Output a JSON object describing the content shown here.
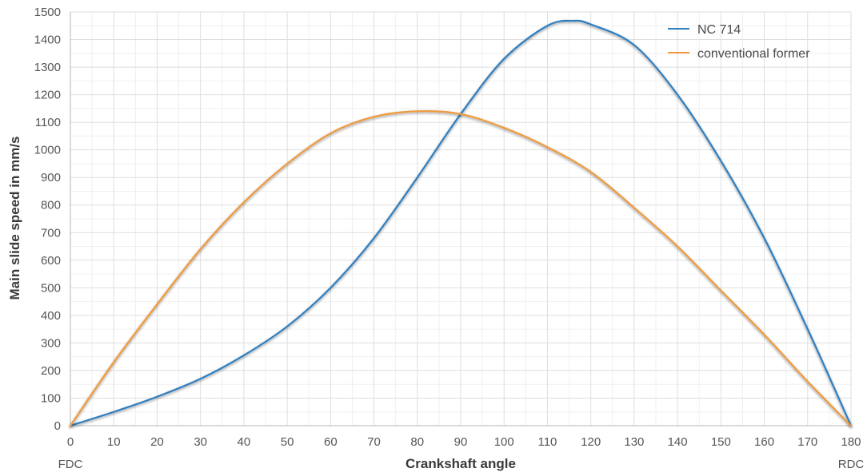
{
  "chart_data": {
    "type": "line",
    "title": "",
    "xlabel": "Crankshaft angle",
    "ylabel": "Main slide speed in mm/s",
    "xlim": [
      0,
      180
    ],
    "ylim": [
      0,
      1500
    ],
    "x_ticks": [
      0,
      10,
      20,
      30,
      40,
      50,
      60,
      70,
      80,
      90,
      100,
      110,
      120,
      130,
      140,
      150,
      160,
      170,
      180
    ],
    "y_ticks": [
      0,
      100,
      200,
      300,
      400,
      500,
      600,
      700,
      800,
      900,
      1000,
      1100,
      1200,
      1300,
      1400,
      1500
    ],
    "x_edge_labels": {
      "left": "FDC",
      "right": "RDC"
    },
    "grid": true,
    "legend_position": "top-right",
    "series": [
      {
        "name": "NC 714",
        "color": "#2f7fc1",
        "x": [
          0,
          10,
          20,
          30,
          40,
          50,
          60,
          70,
          80,
          90,
          100,
          110,
          116,
          120,
          130,
          140,
          150,
          160,
          170,
          180
        ],
        "y": [
          0,
          50,
          105,
          170,
          255,
          360,
          500,
          680,
          900,
          1130,
          1330,
          1450,
          1468,
          1455,
          1380,
          1200,
          960,
          680,
          350,
          0
        ]
      },
      {
        "name": "conventional former",
        "color": "#ef9a3c",
        "x": [
          0,
          10,
          20,
          30,
          40,
          50,
          60,
          70,
          80,
          90,
          100,
          110,
          120,
          130,
          140,
          150,
          160,
          170,
          180
        ],
        "y": [
          0,
          230,
          440,
          640,
          810,
          950,
          1060,
          1120,
          1140,
          1130,
          1080,
          1010,
          920,
          790,
          650,
          490,
          330,
          160,
          0
        ]
      }
    ]
  }
}
